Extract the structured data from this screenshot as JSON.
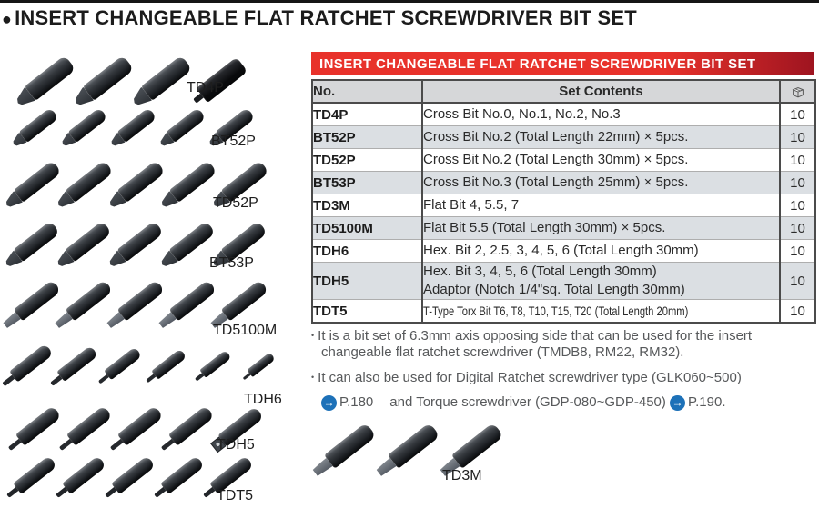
{
  "header": {
    "bullet": "●",
    "title": "INSERT CHANGEABLE FLAT RATCHET SCREWDRIVER BIT SET"
  },
  "panel": {
    "banner": "INSERT CHANGEABLE FLAT RATCHET SCREWDRIVER BIT SET",
    "columns": {
      "no": "No.",
      "contents": "Set Contents",
      "qty_icon": "package-box-icon"
    },
    "rows": [
      {
        "no": "TD4P",
        "contents": [
          "Cross Bit No.0, No.1, No.2, No.3"
        ],
        "qty": "10"
      },
      {
        "no": "BT52P",
        "contents": [
          "Cross Bit No.2 (Total Length 22mm) × 5pcs."
        ],
        "qty": "10"
      },
      {
        "no": "TD52P",
        "contents": [
          "Cross Bit No.2 (Total Length 30mm) × 5pcs."
        ],
        "qty": "10"
      },
      {
        "no": "BT53P",
        "contents": [
          "Cross Bit No.3 (Total Length 25mm) × 5pcs."
        ],
        "qty": "10"
      },
      {
        "no": "TD3M",
        "contents": [
          "Flat Bit 4, 5.5, 7"
        ],
        "qty": "10"
      },
      {
        "no": "TD5100M",
        "contents": [
          "Flat Bit 5.5 (Total Length 30mm) × 5pcs."
        ],
        "qty": "10"
      },
      {
        "no": "TDH6",
        "contents": [
          "Hex. Bit 2, 2.5, 3, 4, 5, 6 (Total Length 30mm)"
        ],
        "qty": "10"
      },
      {
        "no": "TDH5",
        "contents": [
          "Hex. Bit 3, 4, 5, 6 (Total Length 30mm)",
          "Adaptor (Notch 1/4\"sq. Total Length 30mm)"
        ],
        "qty": "10"
      },
      {
        "no": "TDT5",
        "contents": [
          "T-Type Torx Bit T6, T8, T10, T15, T20 (Total Length 20mm)"
        ],
        "qty": "10",
        "condensed": true
      }
    ]
  },
  "gallery": {
    "groups": [
      {
        "label": "TD4P",
        "count": 4,
        "bit_type": "cross"
      },
      {
        "label": "BT52P",
        "count": 5,
        "bit_type": "cross"
      },
      {
        "label": "TD52P",
        "count": 5,
        "bit_type": "cross"
      },
      {
        "label": "BT53P",
        "count": 5,
        "bit_type": "cross"
      },
      {
        "label": "TD5100M",
        "count": 5,
        "bit_type": "flat"
      },
      {
        "label": "TDH6",
        "count": 6,
        "bit_type": "hex"
      },
      {
        "label": "TDH5",
        "count": 5,
        "bit_type": "hex-adaptor"
      },
      {
        "label": "TDT5",
        "count": 5,
        "bit_type": "torx"
      },
      {
        "label": "TD3M",
        "count": 3,
        "bit_type": "flat"
      }
    ]
  },
  "notes": {
    "bullet": "•",
    "note1": "It is a bit set of 6.3mm axis opposing side that can be used for the insert changeable flat ratchet screwdriver (TMDB8, RM22, RM32).",
    "note2_line1": "It can also be used for Digital Ratchet screwdriver type (GLK060~500)",
    "arrow_glyph": "→",
    "ref1": "P.180",
    "note2_mid": "and Torque screwdriver (GDP-080~GDP-450)",
    "ref2": "P.190."
  },
  "colors": {
    "banner_red": "#e8322b",
    "banner_red_dark": "#9e1420",
    "header_row_gray": "#d6d7d9",
    "alt_row_gray": "#dbdfe3",
    "page_ref_blue": "#1d71b8",
    "note_text_gray": "#57595b"
  }
}
